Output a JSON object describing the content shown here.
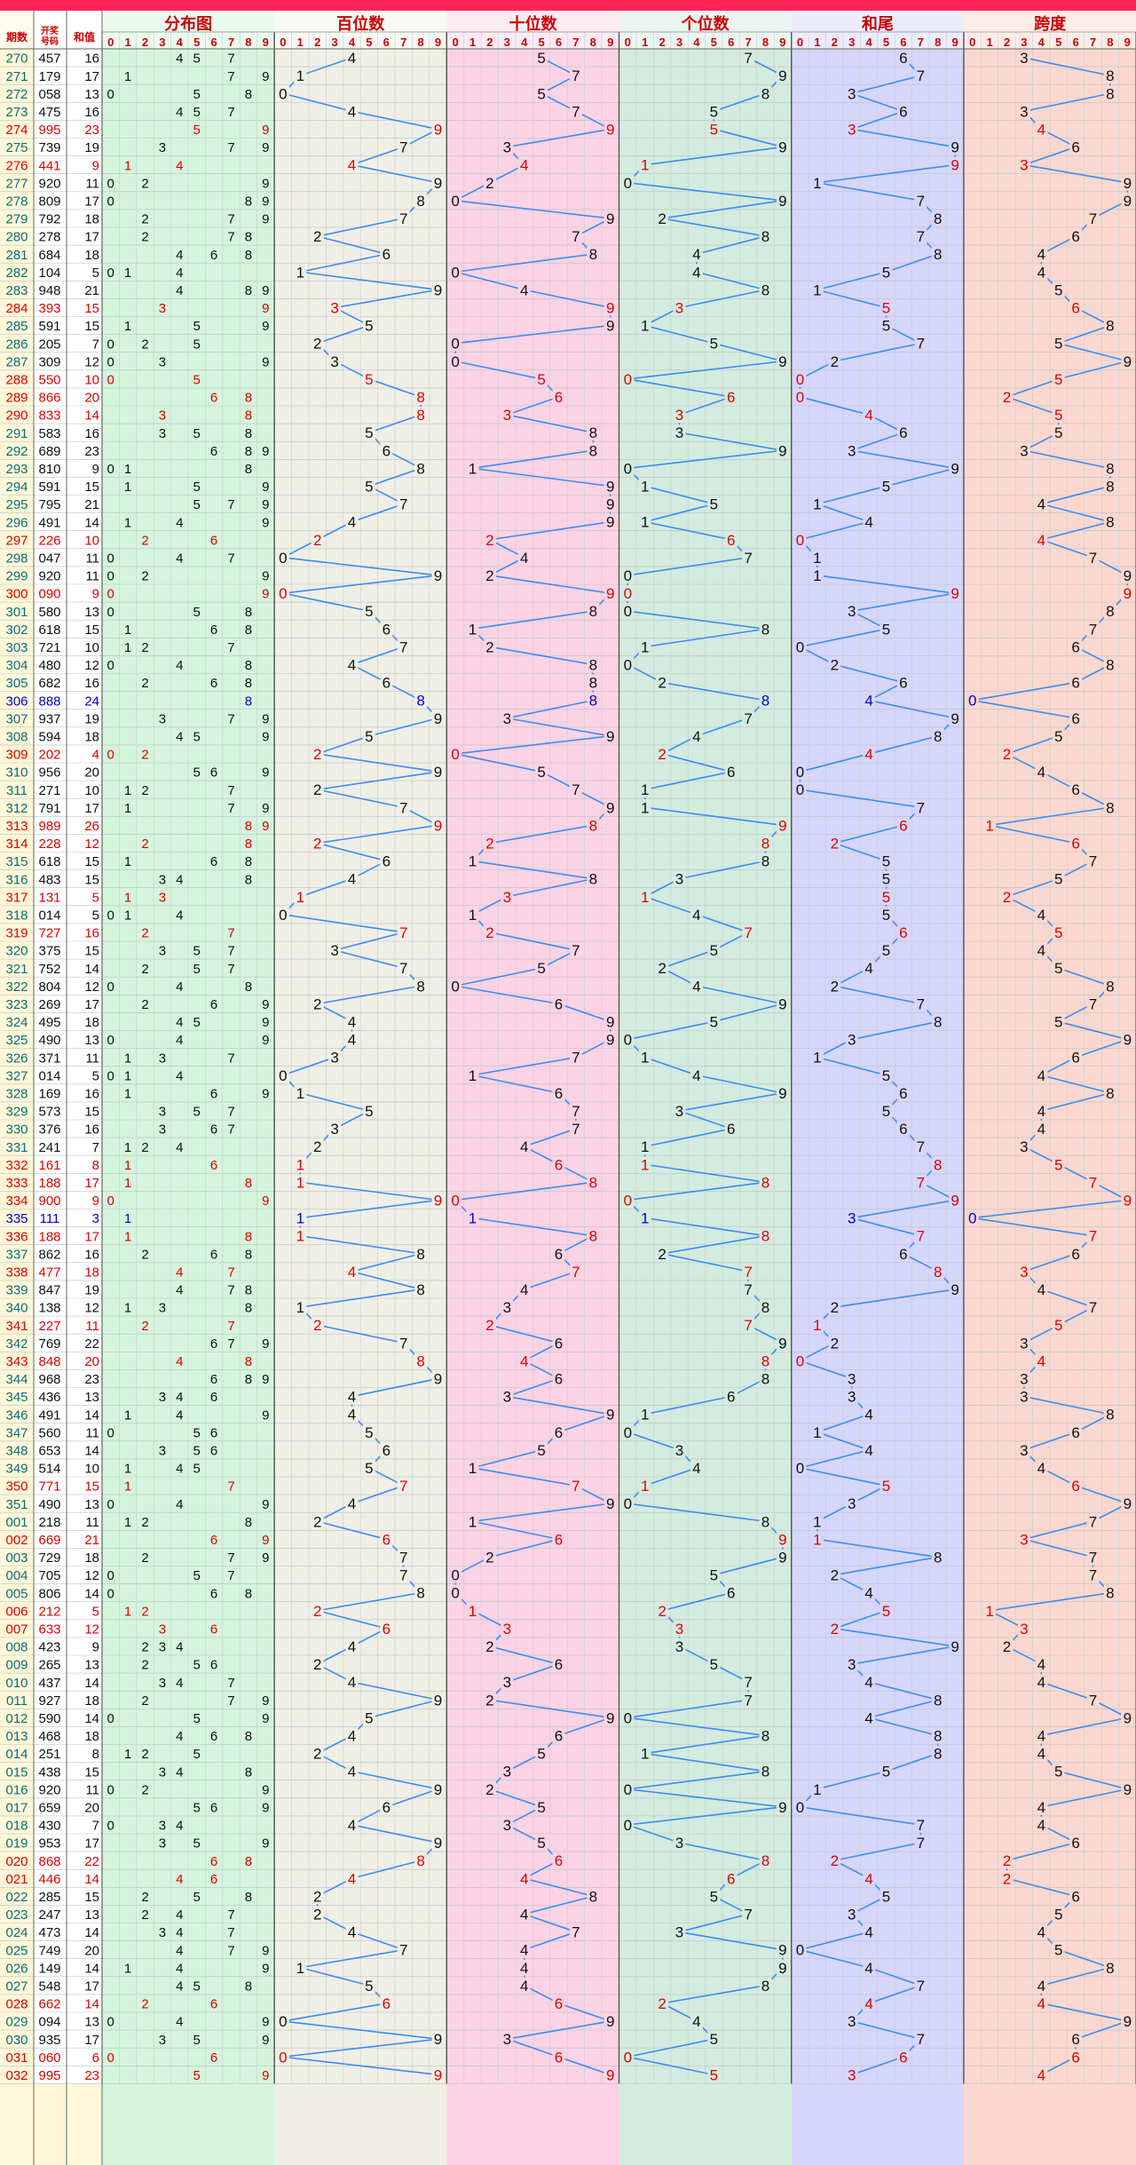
{
  "colors": {
    "accent": "#ff2457",
    "line": "#3c8cf0",
    "red": "#e00000",
    "blue": "#0000dd",
    "black": "#111111",
    "teal": "#0a6e78",
    "panel_dist": "#d4f5dc",
    "panel_hundreds": "#f0efe6",
    "panel_tens": "#fbd3e4",
    "panel_units": "#d4ebdf",
    "panel_tail": "#d6d6fb",
    "panel_span": "#fbd8cf",
    "left_col": "#fff7d8"
  },
  "header": {
    "col_period": "期数",
    "col_draw": "开奖号码",
    "col_sum": "和值",
    "panels": [
      "分布图",
      "百位数",
      "十位数",
      "个位数",
      "和尾",
      "跨度"
    ],
    "digits": [
      "0",
      "1",
      "2",
      "3",
      "4",
      "5",
      "6",
      "7",
      "8",
      "9"
    ]
  },
  "chart_data": {
    "type": "table",
    "rows": [
      {
        "p": "270",
        "n": "457",
        "s": "16"
      },
      {
        "p": "271",
        "n": "179",
        "s": "17"
      },
      {
        "p": "272",
        "n": "058",
        "s": "13"
      },
      {
        "p": "273",
        "n": "475",
        "s": "16"
      },
      {
        "p": "274",
        "n": "995",
        "s": "23"
      },
      {
        "p": "275",
        "n": "739",
        "s": "19"
      },
      {
        "p": "276",
        "n": "441",
        "s": "9"
      },
      {
        "p": "277",
        "n": "920",
        "s": "11"
      },
      {
        "p": "278",
        "n": "809",
        "s": "17"
      },
      {
        "p": "279",
        "n": "792",
        "s": "18"
      },
      {
        "p": "280",
        "n": "278",
        "s": "17"
      },
      {
        "p": "281",
        "n": "684",
        "s": "18"
      },
      {
        "p": "282",
        "n": "104",
        "s": "5"
      },
      {
        "p": "283",
        "n": "948",
        "s": "21"
      },
      {
        "p": "284",
        "n": "393",
        "s": "15"
      },
      {
        "p": "285",
        "n": "591",
        "s": "15"
      },
      {
        "p": "286",
        "n": "205",
        "s": "7"
      },
      {
        "p": "287",
        "n": "309",
        "s": "12"
      },
      {
        "p": "288",
        "n": "550",
        "s": "10"
      },
      {
        "p": "289",
        "n": "866",
        "s": "20"
      },
      {
        "p": "290",
        "n": "833",
        "s": "14"
      },
      {
        "p": "291",
        "n": "583",
        "s": "16"
      },
      {
        "p": "292",
        "n": "689",
        "s": "23"
      },
      {
        "p": "293",
        "n": "810",
        "s": "9"
      },
      {
        "p": "294",
        "n": "591",
        "s": "15"
      },
      {
        "p": "295",
        "n": "795",
        "s": "21"
      },
      {
        "p": "296",
        "n": "491",
        "s": "14"
      },
      {
        "p": "297",
        "n": "226",
        "s": "10"
      },
      {
        "p": "298",
        "n": "047",
        "s": "11"
      },
      {
        "p": "299",
        "n": "920",
        "s": "11"
      },
      {
        "p": "300",
        "n": "090",
        "s": "9"
      },
      {
        "p": "301",
        "n": "580",
        "s": "13"
      },
      {
        "p": "302",
        "n": "618",
        "s": "15"
      },
      {
        "p": "303",
        "n": "721",
        "s": "10"
      },
      {
        "p": "304",
        "n": "480",
        "s": "12"
      },
      {
        "p": "305",
        "n": "682",
        "s": "16"
      },
      {
        "p": "306",
        "n": "888",
        "s": "24"
      },
      {
        "p": "307",
        "n": "937",
        "s": "19"
      },
      {
        "p": "308",
        "n": "594",
        "s": "18"
      },
      {
        "p": "309",
        "n": "202",
        "s": "4"
      },
      {
        "p": "310",
        "n": "956",
        "s": "20"
      },
      {
        "p": "311",
        "n": "271",
        "s": "10"
      },
      {
        "p": "312",
        "n": "791",
        "s": "17"
      },
      {
        "p": "313",
        "n": "989",
        "s": "26"
      },
      {
        "p": "314",
        "n": "228",
        "s": "12"
      },
      {
        "p": "315",
        "n": "618",
        "s": "15"
      },
      {
        "p": "316",
        "n": "483",
        "s": "15"
      },
      {
        "p": "317",
        "n": "131",
        "s": "5"
      },
      {
        "p": "318",
        "n": "014",
        "s": "5"
      },
      {
        "p": "319",
        "n": "727",
        "s": "16"
      },
      {
        "p": "320",
        "n": "375",
        "s": "15"
      },
      {
        "p": "321",
        "n": "752",
        "s": "14"
      },
      {
        "p": "322",
        "n": "804",
        "s": "12"
      },
      {
        "p": "323",
        "n": "269",
        "s": "17"
      },
      {
        "p": "324",
        "n": "495",
        "s": "18"
      },
      {
        "p": "325",
        "n": "490",
        "s": "13"
      },
      {
        "p": "326",
        "n": "371",
        "s": "11"
      },
      {
        "p": "327",
        "n": "014",
        "s": "5"
      },
      {
        "p": "328",
        "n": "169",
        "s": "16"
      },
      {
        "p": "329",
        "n": "573",
        "s": "15"
      },
      {
        "p": "330",
        "n": "376",
        "s": "16"
      },
      {
        "p": "331",
        "n": "241",
        "s": "7"
      },
      {
        "p": "332",
        "n": "161",
        "s": "8"
      },
      {
        "p": "333",
        "n": "188",
        "s": "17"
      },
      {
        "p": "334",
        "n": "900",
        "s": "9"
      },
      {
        "p": "335",
        "n": "111",
        "s": "3"
      },
      {
        "p": "336",
        "n": "188",
        "s": "17"
      },
      {
        "p": "337",
        "n": "862",
        "s": "16"
      },
      {
        "p": "338",
        "n": "477",
        "s": "18"
      },
      {
        "p": "339",
        "n": "847",
        "s": "19"
      },
      {
        "p": "340",
        "n": "138",
        "s": "12"
      },
      {
        "p": "341",
        "n": "227",
        "s": "11"
      },
      {
        "p": "342",
        "n": "769",
        "s": "22"
      },
      {
        "p": "343",
        "n": "848",
        "s": "20"
      },
      {
        "p": "344",
        "n": "968",
        "s": "23"
      },
      {
        "p": "345",
        "n": "436",
        "s": "13"
      },
      {
        "p": "346",
        "n": "491",
        "s": "14"
      },
      {
        "p": "347",
        "n": "560",
        "s": "11"
      },
      {
        "p": "348",
        "n": "653",
        "s": "14"
      },
      {
        "p": "349",
        "n": "514",
        "s": "10"
      },
      {
        "p": "350",
        "n": "771",
        "s": "15"
      },
      {
        "p": "351",
        "n": "490",
        "s": "13"
      },
      {
        "p": "001",
        "n": "218",
        "s": "11"
      },
      {
        "p": "002",
        "n": "669",
        "s": "21"
      },
      {
        "p": "003",
        "n": "729",
        "s": "18"
      },
      {
        "p": "004",
        "n": "705",
        "s": "12"
      },
      {
        "p": "005",
        "n": "806",
        "s": "14"
      },
      {
        "p": "006",
        "n": "212",
        "s": "5"
      },
      {
        "p": "007",
        "n": "633",
        "s": "12"
      },
      {
        "p": "008",
        "n": "423",
        "s": "9"
      },
      {
        "p": "009",
        "n": "265",
        "s": "13"
      },
      {
        "p": "010",
        "n": "437",
        "s": "14"
      },
      {
        "p": "011",
        "n": "927",
        "s": "18"
      },
      {
        "p": "012",
        "n": "590",
        "s": "14"
      },
      {
        "p": "013",
        "n": "468",
        "s": "18"
      },
      {
        "p": "014",
        "n": "251",
        "s": "8"
      },
      {
        "p": "015",
        "n": "438",
        "s": "15"
      },
      {
        "p": "016",
        "n": "920",
        "s": "11"
      },
      {
        "p": "017",
        "n": "659",
        "s": "20"
      },
      {
        "p": "018",
        "n": "430",
        "s": "7"
      },
      {
        "p": "019",
        "n": "953",
        "s": "17"
      },
      {
        "p": "020",
        "n": "868",
        "s": "22"
      },
      {
        "p": "021",
        "n": "446",
        "s": "14"
      },
      {
        "p": "022",
        "n": "285",
        "s": "15"
      },
      {
        "p": "023",
        "n": "247",
        "s": "13"
      },
      {
        "p": "024",
        "n": "473",
        "s": "14"
      },
      {
        "p": "025",
        "n": "749",
        "s": "20"
      },
      {
        "p": "026",
        "n": "149",
        "s": "14"
      },
      {
        "p": "027",
        "n": "548",
        "s": "17"
      },
      {
        "p": "028",
        "n": "662",
        "s": "14"
      },
      {
        "p": "029",
        "n": "094",
        "s": "13"
      },
      {
        "p": "030",
        "n": "935",
        "s": "17"
      },
      {
        "p": "031",
        "n": "060",
        "s": "6"
      },
      {
        "p": "032",
        "n": "995",
        "s": "23"
      }
    ]
  }
}
